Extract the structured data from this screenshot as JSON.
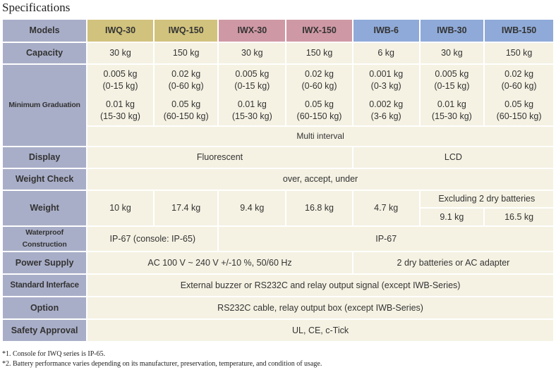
{
  "title": "Specifications",
  "colors": {
    "label_bg": "#a9aec8",
    "cell_bg": "#f5f2e3",
    "iwq": "#d1c27d",
    "iwx": "#cf98a5",
    "iwb": "#8faad8"
  },
  "models": {
    "label": "Models",
    "items": [
      "IWQ-30",
      "IWQ-150",
      "IWX-30",
      "IWX-150",
      "IWB-6",
      "IWB-30",
      "IWB-150"
    ]
  },
  "capacity": {
    "label": "Capacity",
    "values": [
      "30 kg",
      "150 kg",
      "30 kg",
      "150 kg",
      "6 kg",
      "30 kg",
      "150 kg"
    ]
  },
  "min_grad": {
    "label": "Minimum Graduation",
    "row1": [
      [
        "0.005 kg",
        "(0-15 kg)"
      ],
      [
        "0.02 kg",
        "(0-60 kg)"
      ],
      [
        "0.005 kg",
        "(0-15 kg)"
      ],
      [
        "0.02 kg",
        "(0-60 kg)"
      ],
      [
        "0.001 kg",
        "(0-3 kg)"
      ],
      [
        "0.005 kg",
        "(0-15 kg)"
      ],
      [
        "0.02 kg",
        "(0-60 kg)"
      ]
    ],
    "row2": [
      [
        "0.01 kg",
        "(15-30 kg)"
      ],
      [
        "0.05 kg",
        "(60-150 kg)"
      ],
      [
        "0.01 kg",
        "(15-30 kg)"
      ],
      [
        "0.05 kg",
        "(60-150 kg)"
      ],
      [
        "0.002 kg",
        "(3-6 kg)"
      ],
      [
        "0.01 kg",
        "(15-30 kg)"
      ],
      [
        "0.05 kg",
        "(60-150 kg)"
      ]
    ],
    "note": "Multi interval"
  },
  "display": {
    "label": "Display",
    "a": "Fluorescent",
    "b": "LCD"
  },
  "weight_check": {
    "label": "Weight Check",
    "value": "over, accept, under"
  },
  "weight": {
    "label": "Weight",
    "values": [
      "10 kg",
      "17.4 kg",
      "9.4 kg",
      "16.8 kg",
      "4.7 kg"
    ],
    "excl": "Excluding 2 dry batteries",
    "excl_values": [
      "9.1 kg",
      "16.5 kg"
    ]
  },
  "waterproof": {
    "label": "Waterproof Construction",
    "a": "IP-67 (console: IP-65)",
    "b": "IP-67"
  },
  "power": {
    "label": "Power Supply",
    "a": "AC 100 V ~ 240 V +/-10 %, 50/60 Hz",
    "b": "2 dry batteries or AC adapter"
  },
  "interface": {
    "label": "Standard Interface",
    "value": "External buzzer or RS232C and relay output signal (except IWB-Series)"
  },
  "option": {
    "label": "Option",
    "value": "RS232C cable, relay output box (except IWB-Series)"
  },
  "safety": {
    "label": "Safety Approval",
    "value": "UL, CE, c-Tick"
  },
  "footnotes": [
    "*1. Console for IWQ series is IP-65.",
    "*2. Battery performance varies depending on its manufacturer, preservation,  temperature, and condition of usage."
  ]
}
